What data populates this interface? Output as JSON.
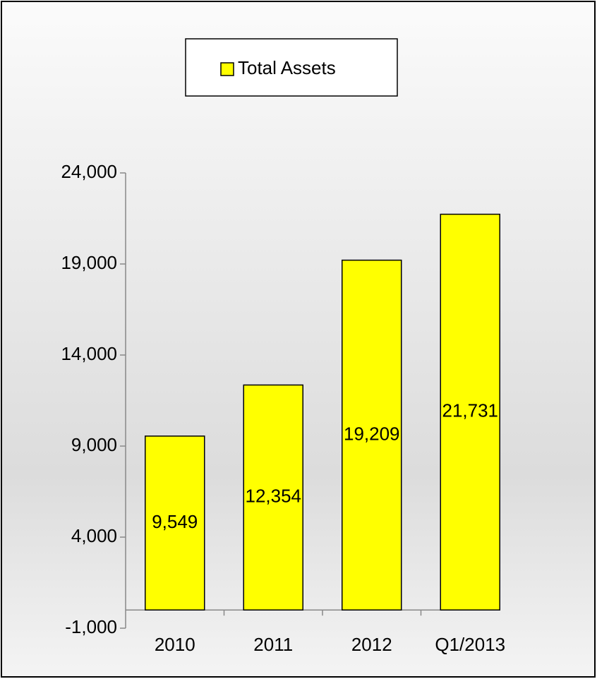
{
  "chart_data": {
    "type": "bar",
    "categories": [
      "2010",
      "2011",
      "2012",
      "Q1/2013"
    ],
    "series": [
      {
        "name": "Total Assets",
        "color": "#ffff00",
        "values": [
          9549,
          12354,
          19209,
          21731
        ],
        "value_labels": [
          "9,549",
          "12,354",
          "19,209",
          "21,731"
        ]
      }
    ],
    "ylim": [
      -1000,
      24000
    ],
    "yticks": [
      {
        "value": -1000,
        "label": "-1,000"
      },
      {
        "value": 4000,
        "label": "4,000"
      },
      {
        "value": 9000,
        "label": "9,000"
      },
      {
        "value": 14000,
        "label": "14,000"
      },
      {
        "value": 19000,
        "label": "19,000"
      },
      {
        "value": 24000,
        "label": "24,000"
      }
    ],
    "legend": "top"
  }
}
